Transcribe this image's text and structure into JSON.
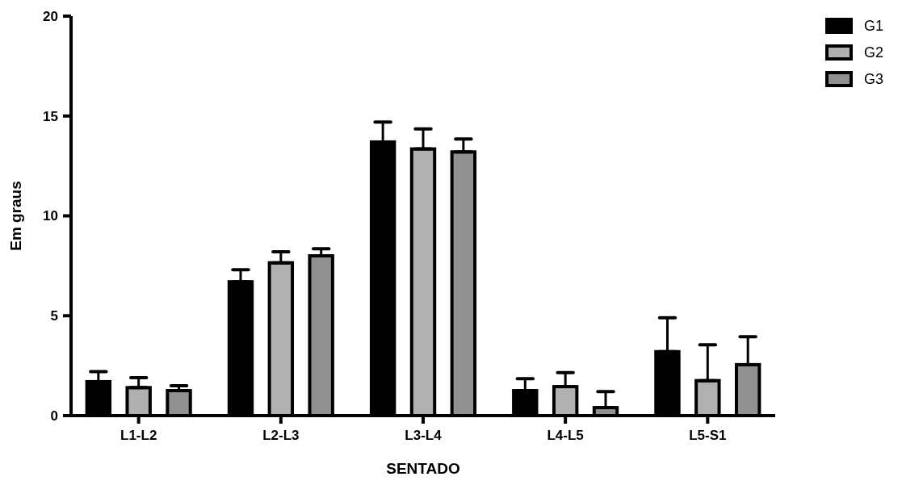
{
  "chart_data": {
    "type": "bar",
    "xlabel": "SENTADO",
    "ylabel": "Em graus",
    "categories": [
      "L1-L2",
      "L2-L3",
      "L3-L4",
      "L4-L5",
      "L5-S1"
    ],
    "ylim": [
      0,
      20
    ],
    "yticks": [
      0,
      5,
      10,
      15,
      20
    ],
    "grid": false,
    "legend": "top right",
    "series": [
      {
        "name": "G1",
        "color": "#000000",
        "values": [
          1.7,
          6.7,
          13.7,
          1.25,
          3.2
        ],
        "errors": [
          [
            1.7,
            2.2
          ],
          [
            6.7,
            7.3
          ],
          [
            13.7,
            14.7
          ],
          [
            1.25,
            1.85
          ],
          [
            3.2,
            4.9
          ]
        ]
      },
      {
        "name": "G2",
        "color": "#b0b0b0",
        "values": [
          1.4,
          7.65,
          13.35,
          1.45,
          1.75
        ],
        "errors": [
          [
            1.4,
            1.9
          ],
          [
            7.65,
            8.2
          ],
          [
            13.35,
            14.35
          ],
          [
            1.45,
            2.15
          ],
          [
            1.75,
            3.55
          ]
        ]
      },
      {
        "name": "G3",
        "color": "#909090",
        "values": [
          1.25,
          8.0,
          13.2,
          0.4,
          2.55
        ],
        "errors": [
          [
            1.25,
            1.5
          ],
          [
            8.0,
            8.35
          ],
          [
            13.2,
            13.85
          ],
          [
            0.4,
            1.2
          ],
          [
            2.55,
            3.95
          ]
        ]
      }
    ]
  }
}
